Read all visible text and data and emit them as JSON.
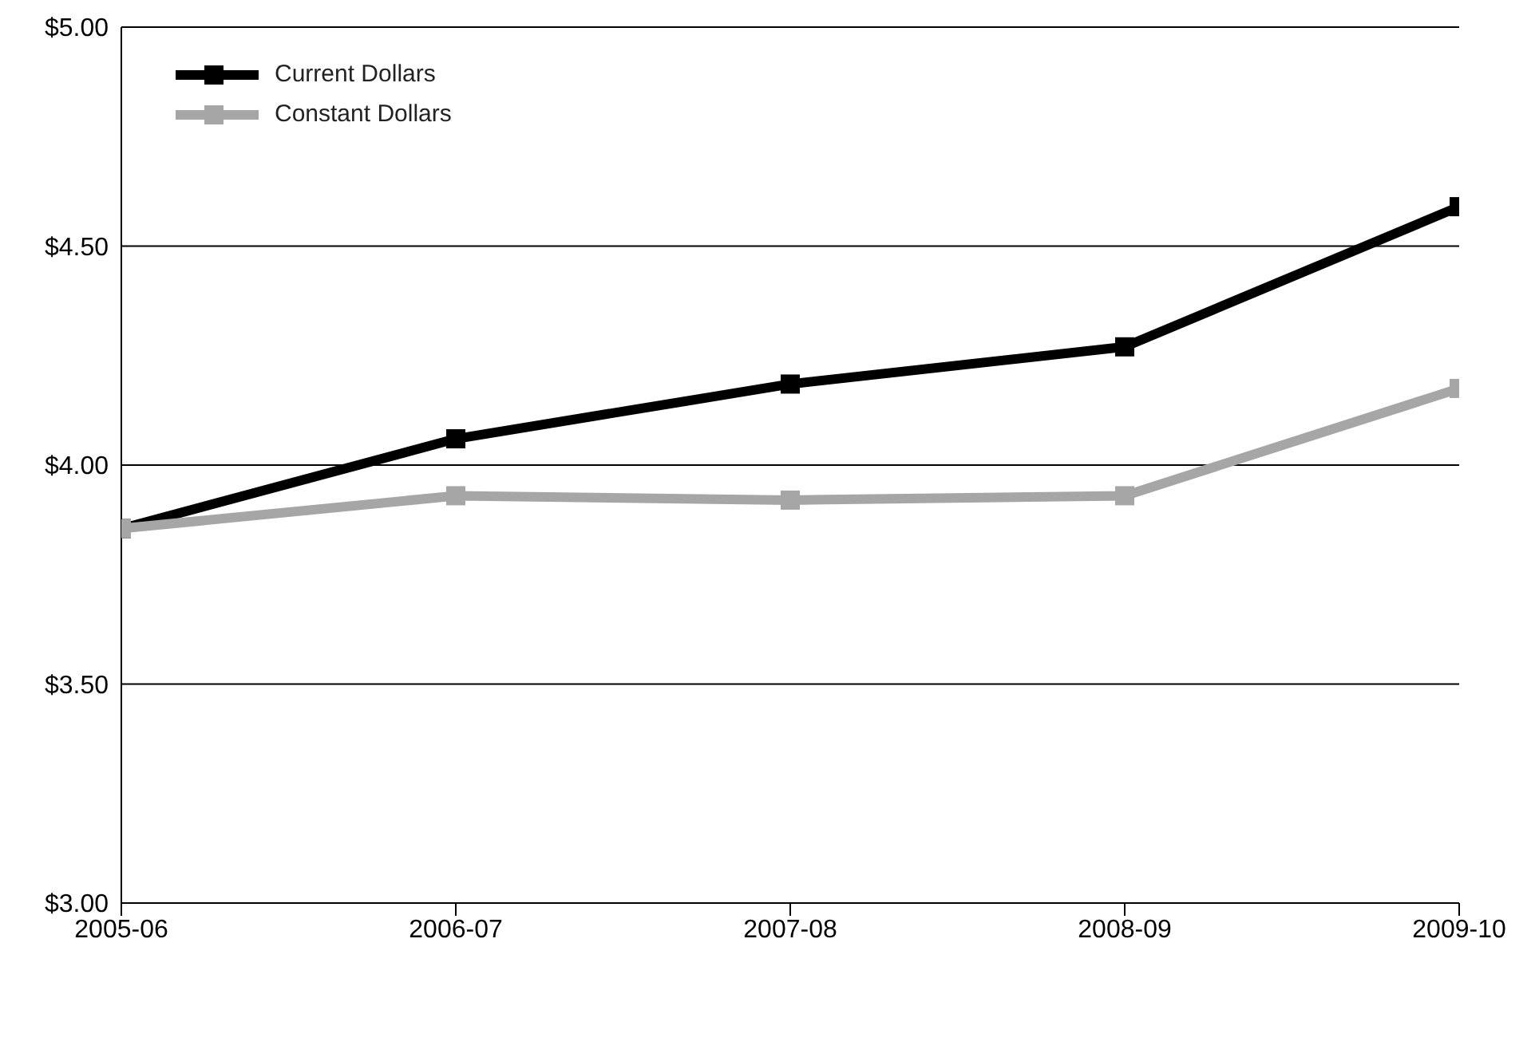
{
  "chart_data": {
    "type": "line",
    "categories": [
      "2005-06",
      "2006-07",
      "2007-08",
      "2008-09",
      "2009-10"
    ],
    "series": [
      {
        "name": "Current Dollars",
        "color": "#000000",
        "values": [
          3.855,
          4.06,
          4.185,
          4.27,
          4.59
        ]
      },
      {
        "name": "Constant Dollars",
        "color": "#a6a6a6",
        "values": [
          3.855,
          3.93,
          3.92,
          3.93,
          4.175
        ]
      }
    ],
    "ylim": [
      3,
      5
    ],
    "yticks": [
      {
        "value": 3,
        "label": "$3.00"
      },
      {
        "value": 3.5,
        "label": "$3.50"
      },
      {
        "value": 4,
        "label": "$4.00"
      },
      {
        "value": 4.5,
        "label": "$4.50"
      },
      {
        "value": 5,
        "label": "$5.00"
      }
    ],
    "grid": "y",
    "legend": "top left",
    "marker": "square",
    "line_style": "solid"
  }
}
